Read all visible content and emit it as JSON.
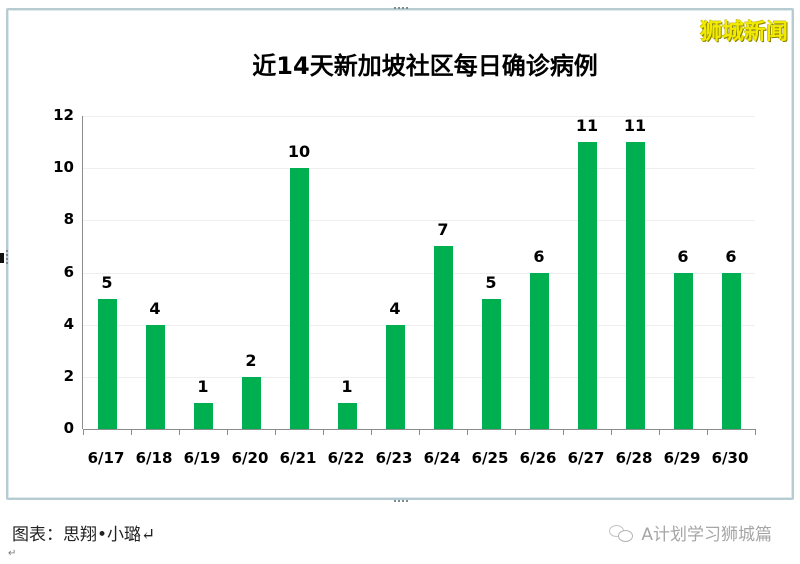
{
  "watermark_top": "狮城新闻",
  "caption": {
    "left": "图表：思翔•小璐↵",
    "right": "A计划学习狮城篇",
    "right_icon": "wechat-icon"
  },
  "paragraph_mark": "↵",
  "chart_data": {
    "type": "bar",
    "title": "近14天新加坡社区每日确诊病例",
    "xlabel": "",
    "ylabel": "",
    "categories": [
      "6/17",
      "6/18",
      "6/19",
      "6/20",
      "6/21",
      "6/22",
      "6/23",
      "6/24",
      "6/25",
      "6/26",
      "6/27",
      "6/28",
      "6/29",
      "6/30"
    ],
    "values": [
      5,
      4,
      1,
      2,
      10,
      1,
      4,
      7,
      5,
      6,
      11,
      11,
      6,
      6
    ],
    "data_labels": [
      "5",
      "4",
      "1",
      "2",
      "10",
      "1",
      "4",
      "7",
      "5",
      "6",
      "11",
      "11",
      "6",
      "6"
    ],
    "ylim": [
      0,
      12
    ],
    "yticks": [
      "0",
      "2",
      "4",
      "6",
      "8",
      "10",
      "12"
    ],
    "grid": true,
    "legend": "none",
    "bar_color": "#00b050"
  }
}
